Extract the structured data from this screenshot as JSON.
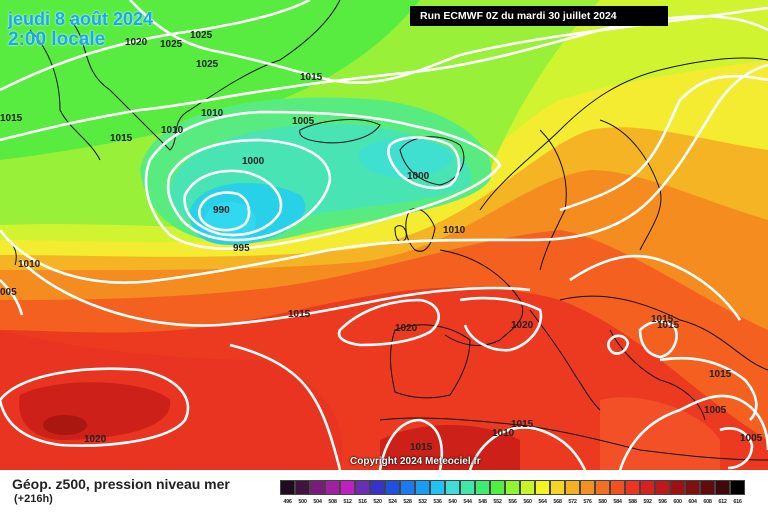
{
  "header": {
    "date_line": "jeudi 8 août 2024",
    "time_line": "2:00 locale",
    "run_info": "Run ECMWF 0Z du mardi 30 juillet 2024"
  },
  "copyright": "Copyright 2024 Meteociel.fr",
  "legend": {
    "title": "Géop. z500, pression niveau mer",
    "subtitle": "(+216h)",
    "colors": [
      "#200a20",
      "#40143c",
      "#7a1a7a",
      "#a020a0",
      "#c020c0",
      "#6a2eb4",
      "#3434cc",
      "#2050e0",
      "#1e78f0",
      "#189cf4",
      "#20c4f4",
      "#40dcd8",
      "#40e8a8",
      "#40ec70",
      "#50f040",
      "#90f430",
      "#c8f428",
      "#f4f424",
      "#f4d424",
      "#f4b020",
      "#f49020",
      "#f47020",
      "#f45020",
      "#ec3420",
      "#d82020",
      "#c01818",
      "#a01010",
      "#801010",
      "#600c0c",
      "#400808",
      "#000000"
    ],
    "values": [
      "496",
      "500",
      "504",
      "508",
      "512",
      "516",
      "520",
      "524",
      "528",
      "532",
      "536",
      "540",
      "544",
      "548",
      "552",
      "556",
      "560",
      "564",
      "568",
      "572",
      "576",
      "580",
      "584",
      "588",
      "592",
      "596",
      "600",
      "604",
      "608",
      "612",
      "616"
    ]
  },
  "isobar_labels": [
    {
      "text": "1020"
    },
    {
      "text": "1025"
    },
    {
      "text": "1025"
    },
    {
      "text": "1025"
    },
    {
      "text": "1015"
    },
    {
      "text": "1015"
    },
    {
      "text": "1015"
    },
    {
      "text": "1010"
    },
    {
      "text": "1010"
    },
    {
      "text": "1005"
    },
    {
      "text": "1000"
    },
    {
      "text": "1000"
    },
    {
      "text": "990"
    },
    {
      "text": "995"
    },
    {
      "text": "1010"
    },
    {
      "text": "1010"
    },
    {
      "text": "005"
    },
    {
      "text": "1015"
    },
    {
      "text": "1020"
    },
    {
      "text": "1020"
    },
    {
      "text": "1015"
    },
    {
      "text": "1015"
    },
    {
      "text": "1015"
    },
    {
      "text": "1005"
    },
    {
      "text": "1005"
    },
    {
      "text": "1020"
    },
    {
      "text": "1015"
    },
    {
      "text": "1010"
    },
    {
      "text": "1015"
    }
  ]
}
